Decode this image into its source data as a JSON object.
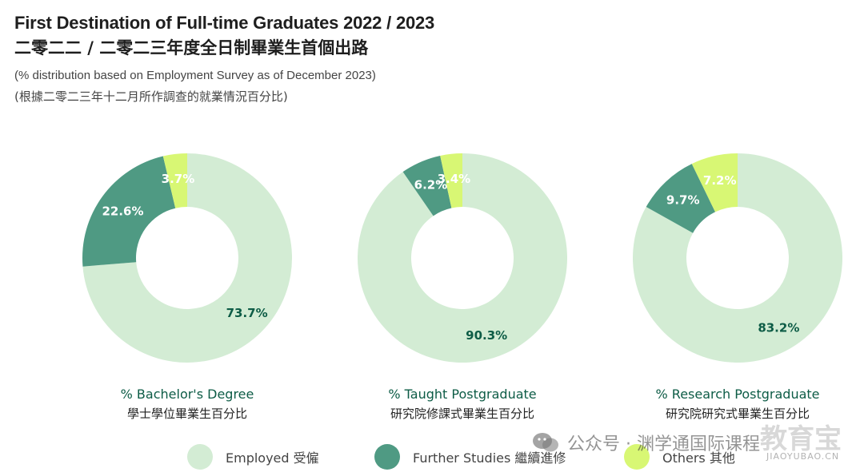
{
  "header": {
    "title_en": "First Destination of Full-time Graduates 2022 / 2023",
    "title_zh": "二零二二 / 二零二三年度全日制畢業生首個出路",
    "subtitle_en": "(% distribution based on Employment Survey as of December 2023)",
    "subtitle_zh": "(根據二零二三年十二月所作調查的就業情況百分比)"
  },
  "colors": {
    "employed": "#d3ecd4",
    "further_studies": "#4f9a83",
    "others": "#d8f774"
  },
  "chart_data": [
    {
      "type": "pie",
      "variant": "donut",
      "title": "% Bachelor's Degree",
      "title_zh": "學士學位畢業生百分比",
      "categories": [
        "Employed 受僱",
        "Further Studies 繼續進修",
        "Others 其他"
      ],
      "values": [
        73.7,
        22.6,
        3.7
      ],
      "labels": [
        "73.7%",
        "22.6%",
        "3.7%"
      ]
    },
    {
      "type": "pie",
      "variant": "donut",
      "title": "% Taught Postgraduate",
      "title_zh": "研究院修課式畢業生百分比",
      "categories": [
        "Employed 受僱",
        "Further Studies 繼續進修",
        "Others 其他"
      ],
      "values": [
        90.3,
        6.2,
        3.4
      ],
      "labels": [
        "90.3%",
        "6.2%",
        "3.4%"
      ]
    },
    {
      "type": "pie",
      "variant": "donut",
      "title": "% Research Postgraduate",
      "title_zh": "研究院研究式畢業生百分比",
      "categories": [
        "Employed 受僱",
        "Further Studies 繼續進修",
        "Others 其他"
      ],
      "values": [
        83.2,
        9.7,
        7.2
      ],
      "labels": [
        "83.2%",
        "9.7%",
        "7.2%"
      ]
    }
  ],
  "legend": [
    {
      "label": "Employed 受僱"
    },
    {
      "label": "Further Studies 繼續進修"
    },
    {
      "label": "Others 其他"
    }
  ],
  "watermark": {
    "text": "公众号 · 渊学通国际课程",
    "logo": "教育宝",
    "url": "JIAOYUBAO.CN"
  }
}
